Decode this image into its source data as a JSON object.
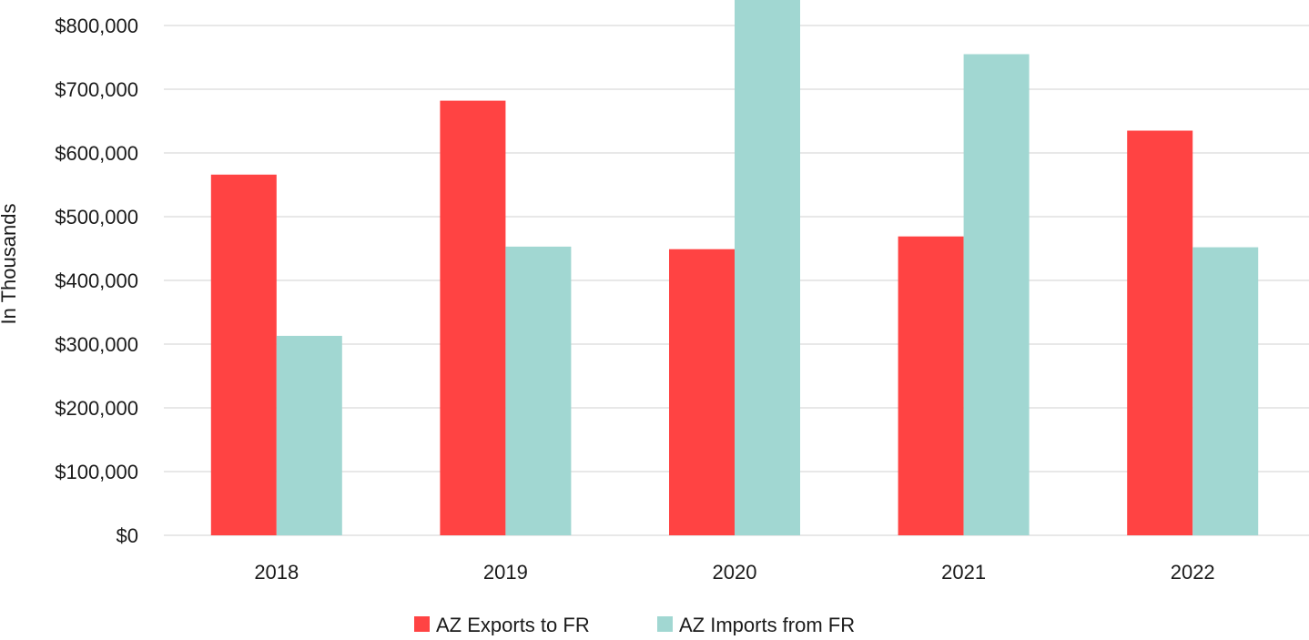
{
  "chart_data": {
    "type": "bar",
    "categories": [
      "2018",
      "2019",
      "2020",
      "2021",
      "2022"
    ],
    "series": [
      {
        "name": "AZ Exports to FR",
        "color": "#FF4343",
        "values": [
          566000,
          682000,
          449000,
          469000,
          635000
        ]
      },
      {
        "name": "AZ Imports from FR",
        "color": "#A1D7D2",
        "values": [
          313000,
          453000,
          840000,
          755000,
          452000
        ]
      }
    ],
    "title": "",
    "xlabel": "",
    "ylabel": "In Thousands",
    "ylim": [
      0,
      800000
    ],
    "ytick_step": 100000,
    "ytick_labels": [
      "$0",
      "$100,000",
      "$200,000",
      "$300,000",
      "$400,000",
      "$500,000",
      "$600,000",
      "$700,000",
      "$800,000"
    ],
    "grid": true,
    "gridline_color": "#D9D9D9",
    "legend_position": "bottom"
  }
}
